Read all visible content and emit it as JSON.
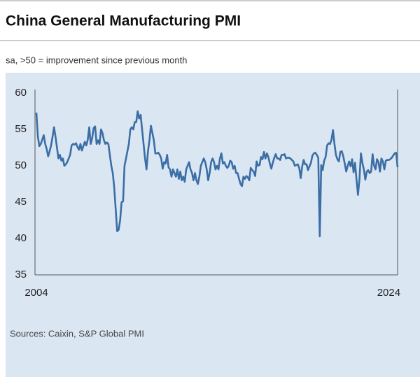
{
  "chart_data": {
    "type": "line",
    "title": "China General Manufacturing PMI",
    "subtitle": "sa, >50 = improvement since previous month",
    "source": "Sources: Caixin, S&P Global PMI",
    "categories": [
      "2004",
      null,
      null,
      null,
      null,
      null,
      null,
      null,
      null,
      null,
      null,
      null,
      null,
      null,
      null,
      null,
      null,
      null,
      null,
      null,
      null,
      null,
      null,
      null,
      null,
      null,
      null,
      null,
      null,
      null,
      null,
      null,
      null,
      null,
      null,
      null,
      null,
      null,
      null,
      null,
      null,
      null,
      null,
      null,
      null,
      null,
      null,
      null,
      null,
      null,
      null,
      null,
      null,
      null,
      null,
      null,
      null,
      null,
      null,
      null,
      null,
      null,
      null,
      null,
      null,
      null,
      null,
      null,
      null,
      null,
      null,
      null,
      null,
      null,
      null,
      null,
      null,
      null,
      null,
      null,
      null,
      null,
      null,
      null,
      null,
      null,
      null,
      null,
      null,
      null,
      null,
      null,
      null,
      null,
      null,
      null,
      null,
      null,
      null,
      null,
      null,
      null,
      null,
      null,
      null,
      null,
      null,
      null,
      null,
      null,
      null,
      null,
      null,
      null,
      null,
      null,
      null,
      null,
      null,
      null,
      null,
      null,
      null,
      null,
      null,
      null,
      null,
      null,
      null,
      null,
      null,
      null,
      null,
      null,
      null,
      null,
      null,
      null,
      null,
      null,
      null,
      null,
      null,
      null,
      null,
      null,
      null,
      null,
      null,
      null,
      null,
      null,
      null,
      null,
      null,
      null,
      null,
      null,
      null,
      null,
      null,
      null,
      null,
      null,
      null,
      null,
      null,
      null,
      null,
      null,
      null,
      null,
      null,
      null,
      null,
      null,
      null,
      null,
      null,
      null,
      null,
      null,
      null,
      null,
      null,
      null,
      null,
      null,
      null,
      null,
      null,
      null,
      null,
      null,
      null,
      null,
      null,
      null,
      null,
      null,
      null,
      null,
      null,
      null,
      null,
      null,
      null,
      null,
      null,
      null,
      null,
      null,
      null,
      null,
      null,
      null,
      null,
      null,
      null,
      null,
      null,
      null,
      null,
      null,
      null,
      null,
      null,
      null,
      null,
      null,
      null,
      null,
      null,
      null,
      null,
      null,
      null,
      null,
      null,
      null,
      "2024",
      null,
      null,
      null,
      null,
      null,
      null
    ],
    "series": [
      {
        "name": "PMI",
        "color": "#3a6ea5",
        "values": [
          57.3,
          54.0,
          52.7,
          53.0,
          53.6,
          54.2,
          53.0,
          52.3,
          51.3,
          52.0,
          52.8,
          54.0,
          55.3,
          54.0,
          52.5,
          51.0,
          51.5,
          50.7,
          51.0,
          50.0,
          50.2,
          50.5,
          51.0,
          51.5,
          52.8,
          53.0,
          52.9,
          53.1,
          52.6,
          52.2,
          53.0,
          52.1,
          52.7,
          53.3,
          52.8,
          53.6,
          55.3,
          53.0,
          53.8,
          55.2,
          55.4,
          53.0,
          53.5,
          53.0,
          55.0,
          54.5,
          53.5,
          53.0,
          53.2,
          53.0,
          51.5,
          50.0,
          49.0,
          47.0,
          44.0,
          41.0,
          41.2,
          42.5,
          45.0,
          45.1,
          50.0,
          51.0,
          52.0,
          53.0,
          55.0,
          55.3,
          55.0,
          56.0,
          56.0,
          57.5,
          56.5,
          57.0,
          55.0,
          53.0,
          51.0,
          49.5,
          52.0,
          53.5,
          55.5,
          54.5,
          53.5,
          51.7,
          51.7,
          51.8,
          51.5,
          51.0,
          49.6,
          50.5,
          50.3,
          51.5,
          49.8,
          49.5,
          48.5,
          49.5,
          49.0,
          48.5,
          49.5,
          48.2,
          49.2,
          48.0,
          48.5,
          47.8,
          49.5,
          50.0,
          50.5,
          49.5,
          49.0,
          48.0,
          49.0,
          48.0,
          47.5,
          48.5,
          50.0,
          50.5,
          51.0,
          50.5,
          49.5,
          48.0,
          49.0,
          50.5,
          51.0,
          50.5,
          49.5,
          50.0,
          49.5,
          51.0,
          51.7,
          50.3,
          50.5,
          50.0,
          49.7,
          50.0,
          50.7,
          50.5,
          49.6,
          50.0,
          49.0,
          49.0,
          48.2,
          47.5,
          47.2,
          48.5,
          48.2,
          48.6,
          48.4,
          48.0,
          49.7,
          49.4,
          49.2,
          48.6,
          50.6,
          50.0,
          50.1,
          51.2,
          50.9,
          51.9,
          51.0,
          51.7,
          51.2,
          50.3,
          49.6,
          50.4,
          51.1,
          51.6,
          51.0,
          51.0,
          50.8,
          51.5,
          51.5,
          51.6,
          51.0,
          51.1,
          51.1,
          51.0,
          50.8,
          50.6,
          50.0,
          50.1,
          50.2,
          49.7,
          48.3,
          49.9,
          50.8,
          50.2,
          50.2,
          49.4,
          49.9,
          50.4,
          51.4,
          51.7,
          51.8,
          51.5,
          51.1,
          40.3,
          50.1,
          49.4,
          50.7,
          51.2,
          52.8,
          53.1,
          53.0,
          53.6,
          54.9,
          53.0,
          51.5,
          50.9,
          50.6,
          51.9,
          52.0,
          51.3,
          50.3,
          49.2,
          50.0,
          50.6,
          49.9,
          50.9,
          49.1,
          50.4,
          48.1,
          46.0,
          48.1,
          51.7,
          50.4,
          49.5,
          48.1,
          49.2,
          49.4,
          49.0,
          49.2,
          51.6,
          50.0,
          49.5,
          50.9,
          50.5,
          49.2,
          51.0,
          50.6,
          49.5,
          50.7,
          50.8,
          50.8,
          50.9,
          51.1,
          51.4,
          51.7,
          51.8,
          49.8
        ]
      }
    ],
    "ylim": [
      35,
      60
    ],
    "yticks": [
      35,
      40,
      45,
      50,
      55,
      60
    ],
    "grid": false
  }
}
